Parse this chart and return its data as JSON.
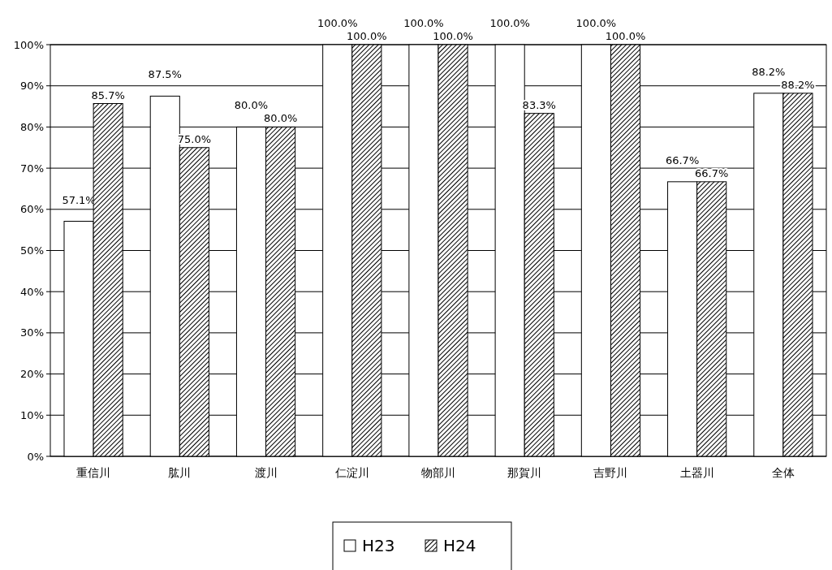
{
  "chart_data": {
    "type": "bar",
    "categories": [
      "重信川",
      "肱川",
      "渡川",
      "仁淀川",
      "物部川",
      "那賀川",
      "吉野川",
      "土器川",
      "全体"
    ],
    "series": [
      {
        "name": "H23",
        "color": "#ffffff",
        "values": [
          57.1,
          87.5,
          80.0,
          100,
          100,
          100,
          100,
          66.7,
          88.2
        ],
        "value_labels": [
          "57.1%",
          "87.5%",
          "80.0%",
          "100.0%",
          "100.0%",
          "100.0%",
          "100.0%",
          "66.7%",
          "88.2%"
        ]
      },
      {
        "name": "H24",
        "color": "#000000",
        "values": [
          85.7,
          75.0,
          80.0,
          100,
          100,
          83.3,
          100,
          66.7,
          88.2
        ],
        "value_labels": [
          "85.7%",
          "75.0%",
          "80.0%",
          "100.0%",
          "100.0%",
          "83.3%",
          "100.0%",
          "66.7%",
          "88.2%"
        ]
      }
    ],
    "ylim": [
      0,
      100
    ],
    "yticks": [
      {
        "value": 0,
        "label": "0%"
      },
      {
        "value": 10,
        "label": "10%"
      },
      {
        "value": 20,
        "label": "20%"
      },
      {
        "value": 30,
        "label": "30%"
      },
      {
        "value": 40,
        "label": "40%"
      },
      {
        "value": 50,
        "label": "50%"
      },
      {
        "value": 60,
        "label": "60%"
      },
      {
        "value": 70,
        "label": "70%"
      },
      {
        "value": 80,
        "label": "80%"
      },
      {
        "value": 90,
        "label": "90%"
      },
      {
        "value": 100,
        "label": "100%"
      }
    ],
    "grid": "y",
    "legend": "bottom"
  }
}
